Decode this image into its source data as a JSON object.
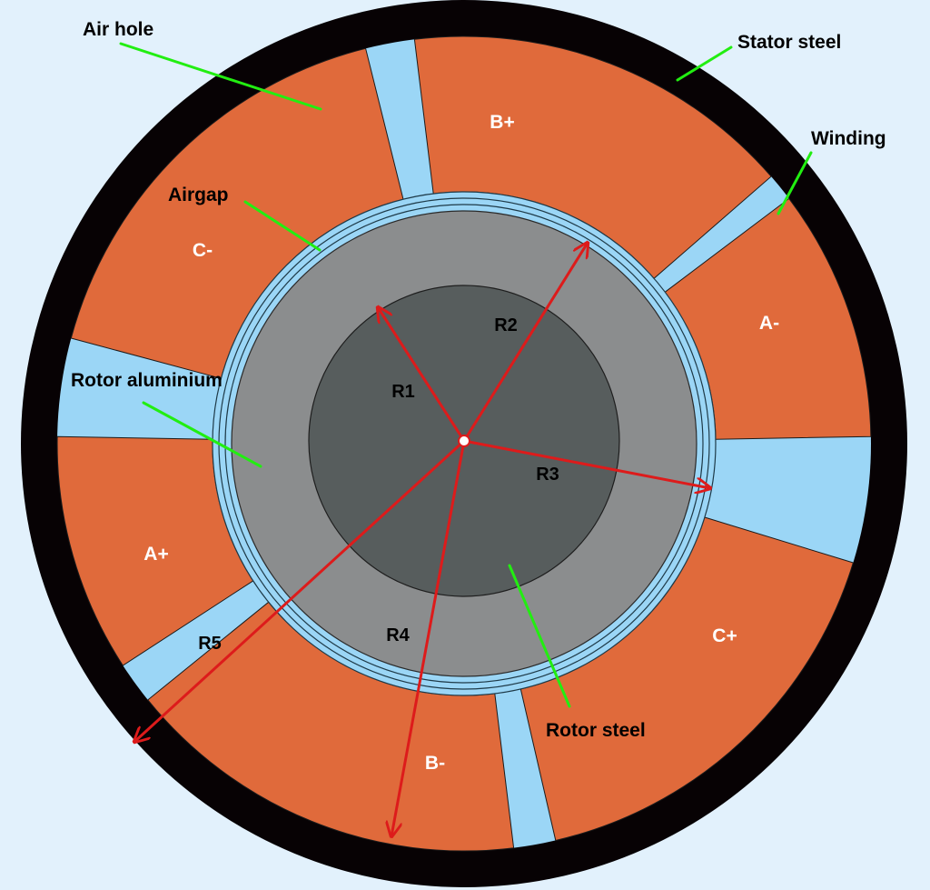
{
  "colors": {
    "background": "#e2f1fc",
    "stator_steel": "#070204",
    "winding": "#e06a3b",
    "air_hole": "#9bd6f6",
    "airgap": "#9bd6f6",
    "rotor_aluminium": "#8b8d8e",
    "rotor_steel": "#575d5d",
    "leader_line": "#22ee11",
    "radius_arrow": "#dd1b1b"
  },
  "labels": {
    "air_hole": "Air hole",
    "stator_steel": "Stator steel",
    "winding": "Winding",
    "airgap": "Airgap",
    "rotor_aluminium": "Rotor aluminium",
    "rotor_steel": "Rotor steel"
  },
  "phases": {
    "b_plus": "B+",
    "a_minus": "A-",
    "c_plus": "C+",
    "b_minus": "B-",
    "a_plus": "A+",
    "c_minus": "C-"
  },
  "radii": {
    "r1": "R1",
    "r2": "R2",
    "r3": "R3",
    "r4": "R4",
    "r5": "R5"
  }
}
